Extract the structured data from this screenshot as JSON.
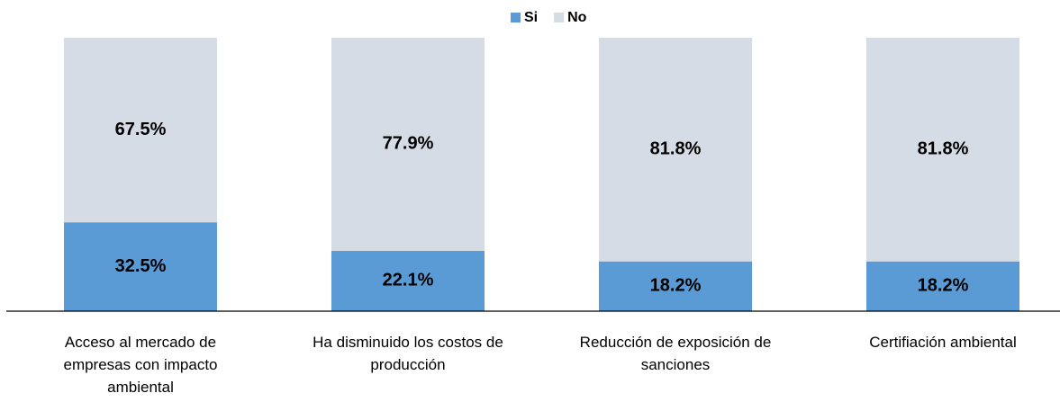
{
  "chart_data": {
    "type": "stacked_bar",
    "categories": [
      "Acceso al mercado de empresas con impacto ambiental",
      "Ha disminuido los costos de producción",
      "Reducción de exposición de sanciones",
      "Certifiación ambiental"
    ],
    "series": [
      {
        "name": "Si",
        "color": "#5b9bd5",
        "values": [
          32.5,
          22.1,
          18.2,
          18.2
        ],
        "value_labels": [
          "32.5%",
          "22.1%",
          "18.2%",
          "18.2%"
        ]
      },
      {
        "name": "No",
        "color": "#d6dce5",
        "values": [
          67.5,
          77.9,
          81.8,
          81.8
        ],
        "value_labels": [
          "67.5%",
          "77.9%",
          "81.8%",
          "81.8%"
        ]
      }
    ],
    "ylim": [
      0,
      100
    ],
    "legend": "top"
  }
}
